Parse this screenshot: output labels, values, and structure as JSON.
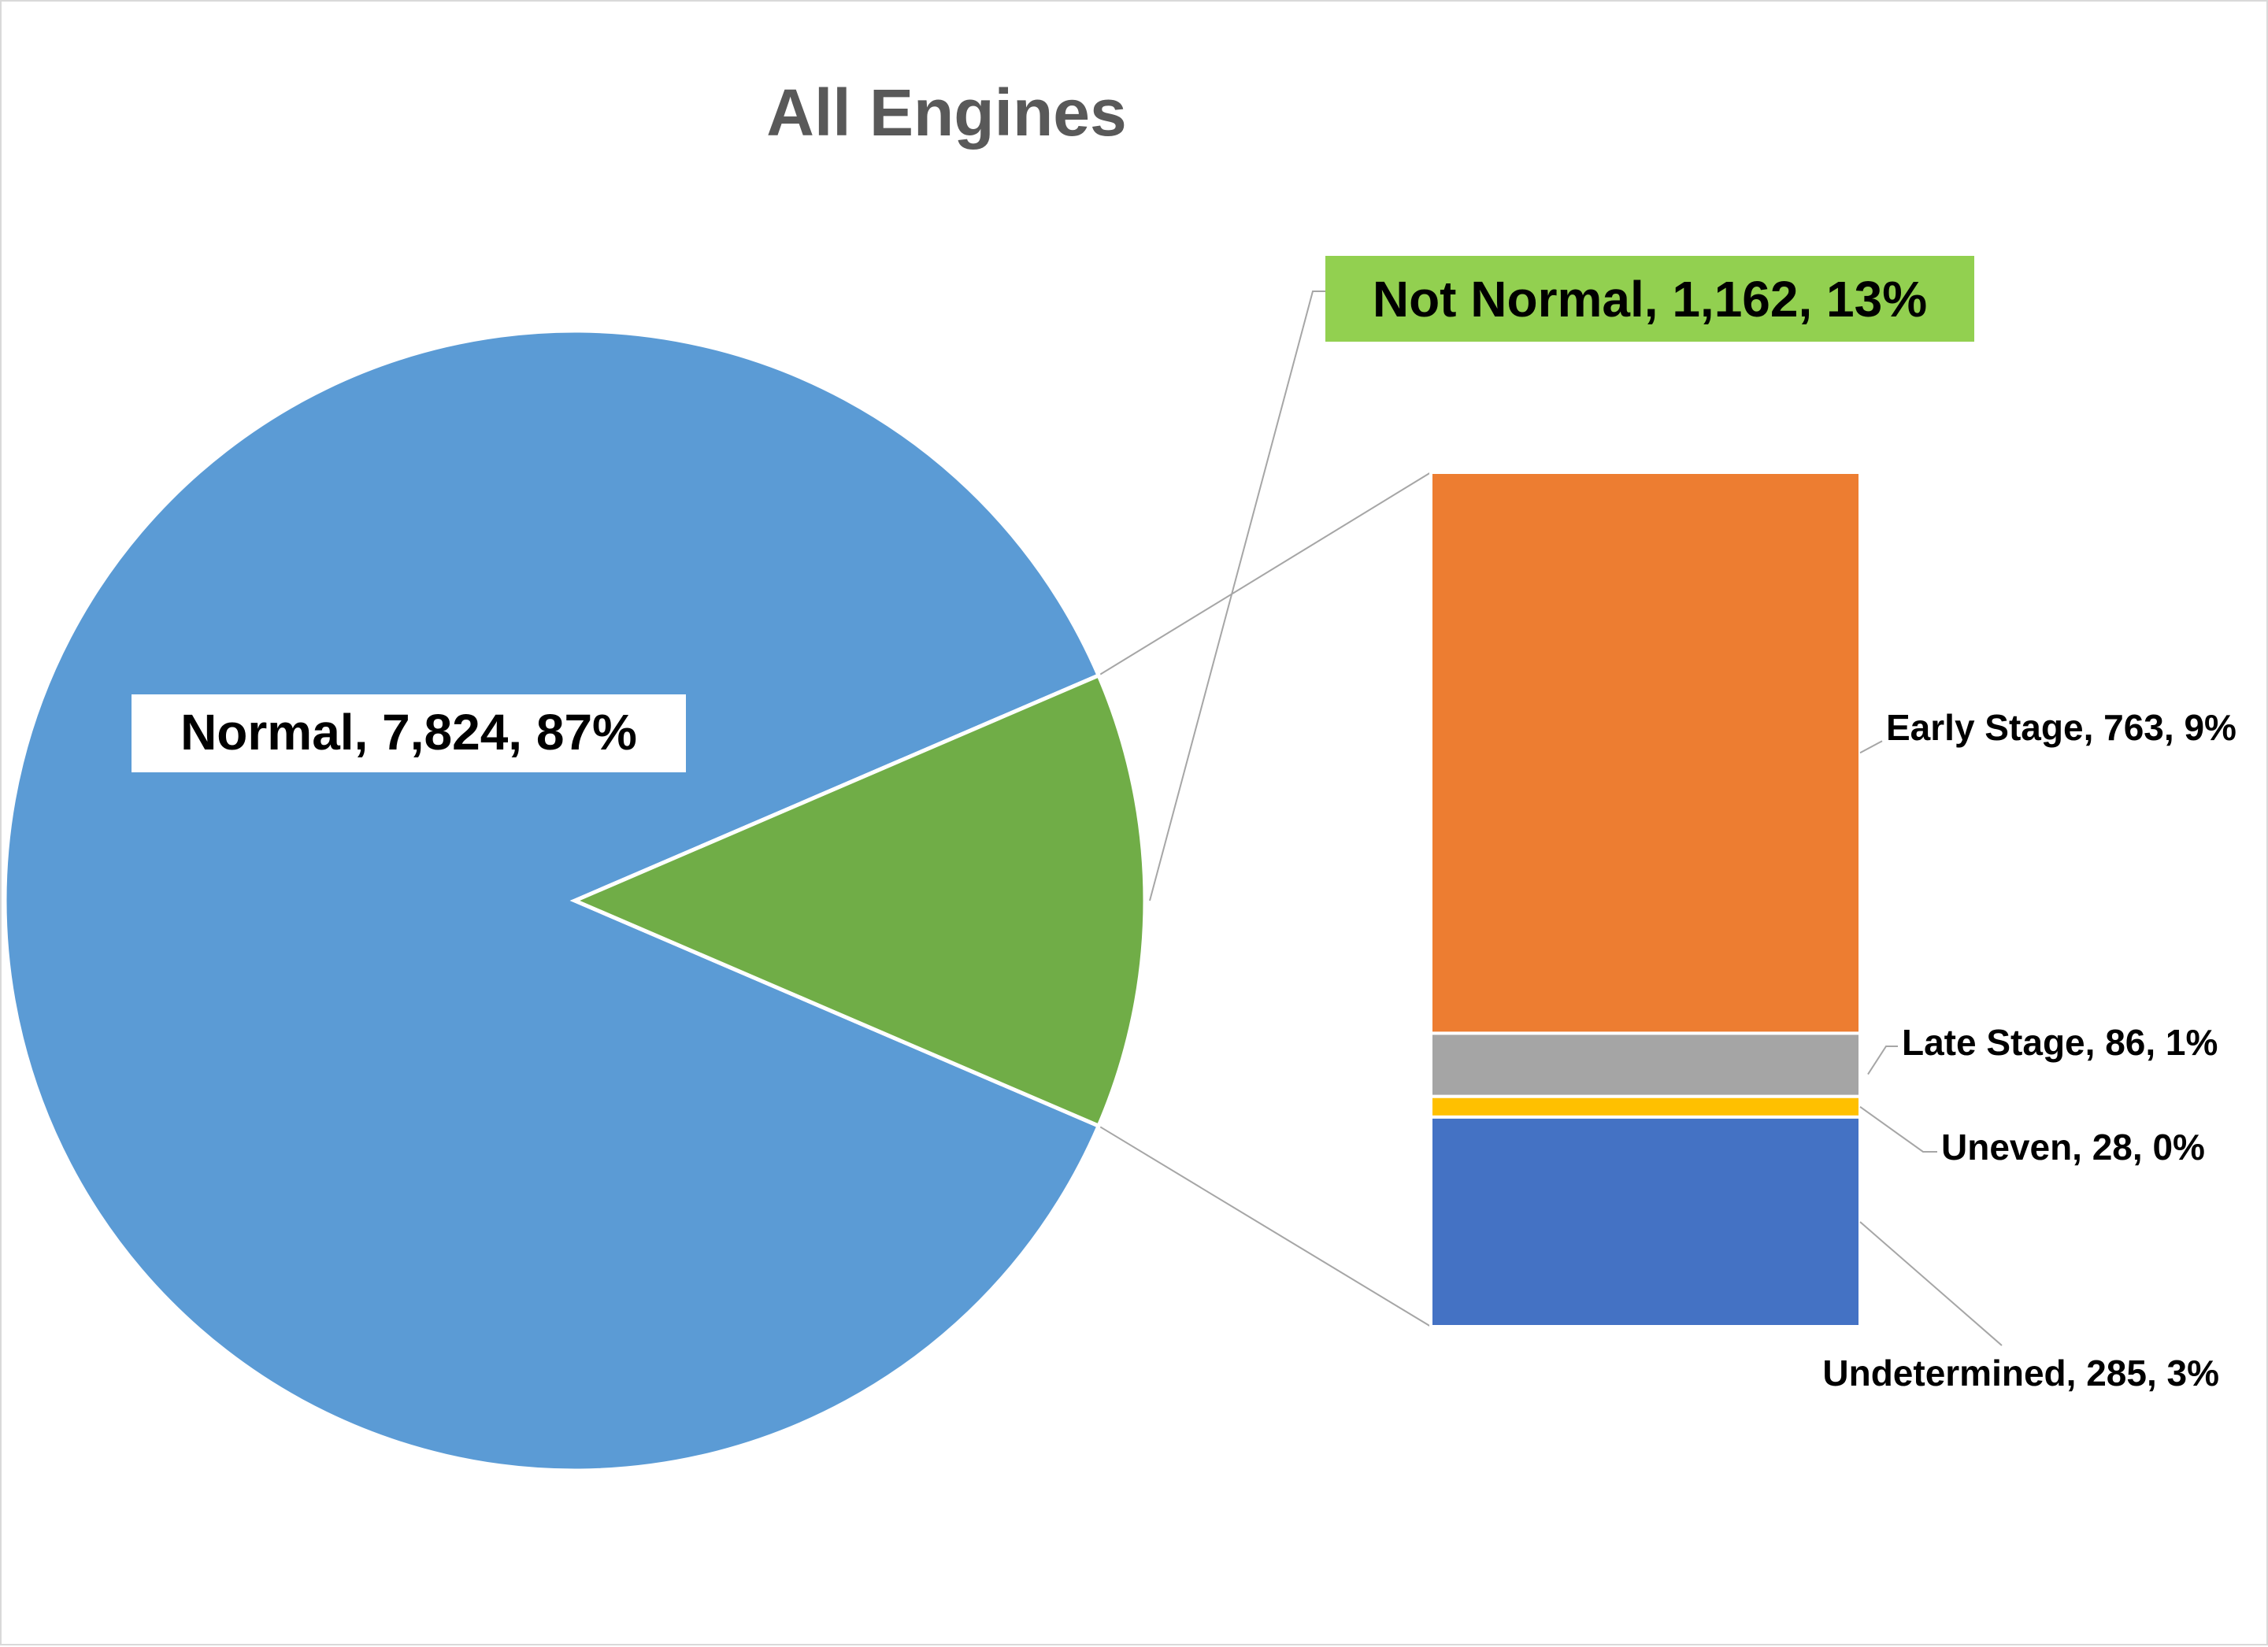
{
  "chart_data": {
    "type": "pie",
    "subtype": "bar-of-pie",
    "title": "All Engines",
    "pie": {
      "slices": [
        {
          "name": "Normal",
          "value": 7824,
          "percent": 87,
          "label": "Normal, 7,824, 87%",
          "color": "#5b9bd5"
        },
        {
          "name": "Not Normal",
          "value": 1162,
          "percent": 13,
          "label": "Not Normal, 1,162, 13%",
          "color": "#70ad47"
        }
      ]
    },
    "breakdown_of": "Not Normal",
    "bar": {
      "segments": [
        {
          "name": "Early Stage",
          "value": 763,
          "percent": 9,
          "label": "Early Stage, 763, 9%",
          "color": "#ed7d31"
        },
        {
          "name": "Late Stage",
          "value": 86,
          "percent": 1,
          "label": "Late Stage, 86, 1%",
          "color": "#a5a5a5"
        },
        {
          "name": "Uneven",
          "value": 28,
          "percent": 0,
          "label": "Uneven, 28, 0%",
          "color": "#ffc000"
        },
        {
          "name": "Undetermined",
          "value": 285,
          "percent": 3,
          "label": "Undetermined, 285, 3%",
          "color": "#4472c4"
        }
      ]
    },
    "label_colors": {
      "normal_box": "#ffffff",
      "not_normal_box": "#92d050"
    },
    "legend": "none"
  }
}
